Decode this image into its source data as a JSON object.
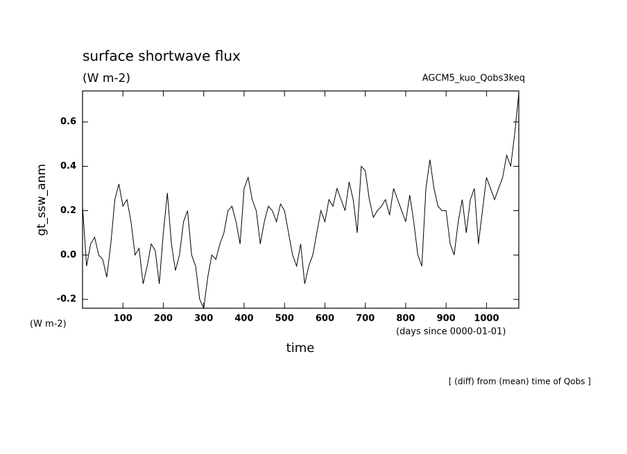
{
  "chart_data": {
    "type": "line",
    "title": "surface shortwave flux",
    "subtitle": "(W m-2)",
    "annotation": "AGCM5_kuo_Qobs3keq",
    "y_label": "gt_ssw_anm",
    "y_unit": "(W m-2)",
    "x_label": "time",
    "x_unit": "(days since 0000-01-01)",
    "note": "[ (diff) from (mean) time of Qobs ]",
    "x": [
      0,
      10,
      20,
      30,
      40,
      50,
      60,
      70,
      80,
      90,
      100,
      110,
      120,
      130,
      140,
      150,
      160,
      170,
      180,
      190,
      200,
      210,
      220,
      230,
      240,
      250,
      260,
      270,
      280,
      290,
      300,
      310,
      320,
      330,
      340,
      350,
      360,
      370,
      380,
      390,
      400,
      410,
      420,
      430,
      440,
      450,
      460,
      470,
      480,
      490,
      500,
      510,
      520,
      530,
      540,
      550,
      560,
      570,
      580,
      590,
      600,
      610,
      620,
      630,
      640,
      650,
      660,
      670,
      680,
      690,
      700,
      710,
      720,
      730,
      740,
      750,
      760,
      770,
      780,
      790,
      800,
      810,
      820,
      830,
      840,
      850,
      860,
      870,
      880,
      890,
      900,
      910,
      920,
      930,
      940,
      950,
      960,
      970,
      980,
      990,
      1000,
      1010,
      1020,
      1030,
      1040,
      1050,
      1060,
      1070,
      1080
    ],
    "series": [
      {
        "name": "gt_ssw_anm",
        "color": "#000000",
        "values": [
          0.22,
          -0.05,
          0.05,
          0.08,
          0.0,
          -0.02,
          -0.1,
          0.05,
          0.25,
          0.32,
          0.22,
          0.25,
          0.15,
          0.0,
          0.03,
          -0.13,
          -0.05,
          0.05,
          0.02,
          -0.13,
          0.1,
          0.28,
          0.05,
          -0.07,
          0.0,
          0.15,
          0.2,
          0.0,
          -0.05,
          -0.2,
          -0.24,
          -0.1,
          0.0,
          -0.02,
          0.05,
          0.1,
          0.2,
          0.22,
          0.15,
          0.05,
          0.3,
          0.35,
          0.25,
          0.2,
          0.05,
          0.15,
          0.22,
          0.2,
          0.15,
          0.23,
          0.2,
          0.1,
          0.0,
          -0.05,
          0.05,
          -0.13,
          -0.05,
          0.0,
          0.1,
          0.2,
          0.15,
          0.25,
          0.22,
          0.3,
          0.25,
          0.2,
          0.33,
          0.25,
          0.1,
          0.4,
          0.38,
          0.25,
          0.17,
          0.2,
          0.22,
          0.25,
          0.18,
          0.3,
          0.25,
          0.2,
          0.15,
          0.27,
          0.15,
          0.0,
          -0.05,
          0.3,
          0.43,
          0.3,
          0.22,
          0.2,
          0.2,
          0.05,
          0.0,
          0.15,
          0.25,
          0.1,
          0.25,
          0.3,
          0.05,
          0.2,
          0.35,
          0.3,
          0.25,
          0.3,
          0.35,
          0.45,
          0.4,
          0.55,
          0.73
        ]
      }
    ],
    "xlim": [
      0,
      1080
    ],
    "ylim": [
      -0.24,
      0.74
    ],
    "xticks": [
      100,
      200,
      300,
      400,
      500,
      600,
      700,
      800,
      900,
      1000
    ],
    "yticks": [
      -0.2,
      {
        "value": 0,
        "label": "0.0"
      },
      0.2,
      0.4,
      0.6
    ]
  }
}
